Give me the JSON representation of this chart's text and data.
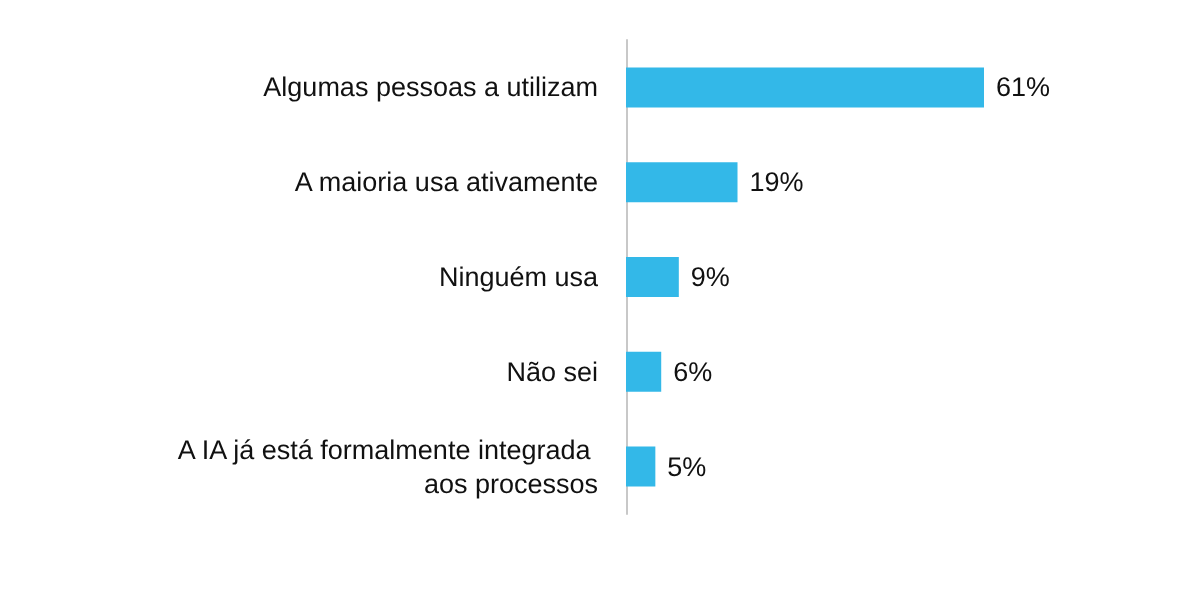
{
  "chart_data": {
    "type": "bar",
    "orientation": "horizontal",
    "categories": [
      "Algumas pessoas a utilizam",
      "A maioria usa ativamente",
      "Ninguém usa",
      "Não sei",
      "A IA já está formalmente integrada aos processos"
    ],
    "values": [
      61,
      19,
      9,
      6,
      5
    ],
    "color": "#33b8e8",
    "data_labels": true,
    "value_labels": [
      "61%",
      "19%",
      "9%",
      "6%",
      "5%"
    ]
  }
}
